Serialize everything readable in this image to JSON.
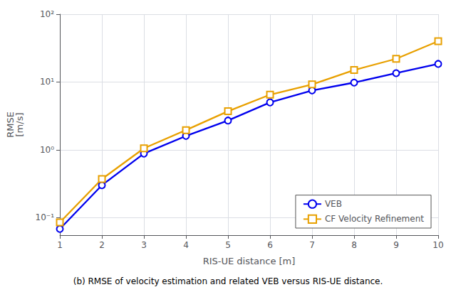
{
  "chart_data": {
    "type": "line",
    "x": [
      1,
      2,
      3,
      4,
      5,
      6,
      7,
      8,
      9,
      10
    ],
    "series": [
      {
        "name": "VEB",
        "color": "#0000EE",
        "marker": "circle",
        "values": [
          0.068,
          0.3,
          0.88,
          1.6,
          2.7,
          5.0,
          7.5,
          9.8,
          13.5,
          18.5
        ]
      },
      {
        "name": "CF Velocity Refinement",
        "color": "#E8A000",
        "marker": "square",
        "values": [
          0.085,
          0.37,
          1.05,
          1.95,
          3.7,
          6.5,
          9.2,
          15.0,
          22.0,
          40.0
        ]
      }
    ],
    "xlabel": "RIS-UE distance [m]",
    "ylabel": "RMSE\n[m/s]",
    "caption": "(b) RMSE of velocity estimation and related VEB versus RIS-UE distance.",
    "xlim": [
      1,
      10
    ],
    "xticks": [
      1,
      2,
      3,
      4,
      5,
      6,
      7,
      8,
      9,
      10
    ],
    "ylim": [
      0.055,
      100
    ],
    "yticks": [
      {
        "value": 0.1,
        "label": "10⁻¹"
      },
      {
        "value": 1,
        "label": "10⁰"
      },
      {
        "value": 10,
        "label": "10¹"
      },
      {
        "value": 100,
        "label": "10²"
      }
    ],
    "log": "y",
    "grid": true,
    "legend": "lower right"
  }
}
